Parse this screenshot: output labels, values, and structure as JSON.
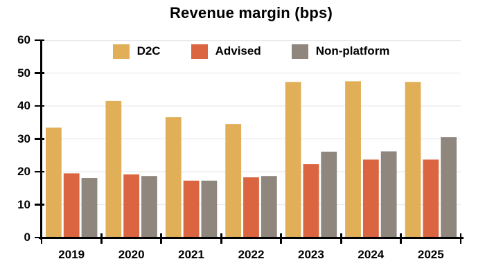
{
  "colors": {
    "background": "#FFFFFF",
    "text": "#000000",
    "axis": "#000000",
    "gridline": "#E9E9E9",
    "d2c": "#E0AF58",
    "advised": "#DB6540",
    "non_platform": "#8F877E"
  },
  "chart_data": {
    "type": "bar",
    "title": "Revenue margin (bps)",
    "categories": [
      "2019",
      "2020",
      "2021",
      "2022",
      "2023",
      "2024",
      "2025"
    ],
    "series": [
      {
        "name": "D2C",
        "color": "#E0AF58",
        "values": [
          33.4,
          41.5,
          36.6,
          34.5,
          47.3,
          47.5,
          47.3
        ]
      },
      {
        "name": "Advised",
        "color": "#DB6540",
        "values": [
          19.5,
          19.2,
          17.3,
          18.3,
          22.3,
          23.7,
          23.7
        ]
      },
      {
        "name": "Non-platform",
        "color": "#8F877E",
        "values": [
          18.1,
          18.7,
          17.3,
          18.7,
          26.1,
          26.2,
          30.5
        ]
      }
    ],
    "xlabel": "",
    "ylabel": "",
    "ylim": [
      0,
      60
    ],
    "yticks": [
      0,
      10,
      20,
      30,
      40,
      50,
      60
    ],
    "grid": true,
    "legend_position": "top-center"
  }
}
